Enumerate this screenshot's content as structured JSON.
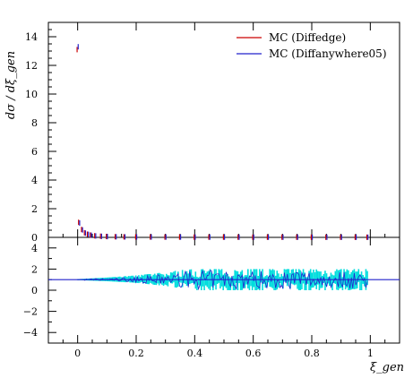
{
  "chart_data": [
    {
      "type": "scatter",
      "panel": "main",
      "ylabel": "dσ / dξ_gen",
      "xlim": [
        -0.1,
        1.1
      ],
      "ylim": [
        0,
        15
      ],
      "yticks": [
        0,
        2,
        4,
        6,
        8,
        10,
        12,
        14
      ],
      "ytick_labels": [
        "0",
        "2",
        "4",
        "6",
        "8",
        "10",
        "12",
        "14"
      ],
      "legend_position": "top-right",
      "series": [
        {
          "name": "MC (Diffedge)",
          "color": "#cc0000",
          "x": [
            0.0,
            0.005,
            0.015,
            0.025,
            0.035,
            0.045,
            0.06,
            0.08,
            0.1,
            0.13,
            0.16,
            0.2,
            0.25,
            0.3,
            0.35,
            0.4,
            0.45,
            0.5,
            0.55,
            0.6,
            0.65,
            0.7,
            0.75,
            0.8,
            0.85,
            0.9,
            0.95,
            0.99
          ],
          "y": [
            13.1,
            1.05,
            0.55,
            0.32,
            0.22,
            0.16,
            0.11,
            0.08,
            0.06,
            0.045,
            0.035,
            0.03,
            0.025,
            0.022,
            0.02,
            0.018,
            0.017,
            0.016,
            0.015,
            0.014,
            0.013,
            0.013,
            0.012,
            0.012,
            0.011,
            0.011,
            0.011,
            0.011
          ]
        },
        {
          "name": "MC (Diffanywhere05)",
          "color": "#2222cc",
          "x": [
            0.0,
            0.005,
            0.015,
            0.025,
            0.035,
            0.045,
            0.06,
            0.08,
            0.1,
            0.13,
            0.16,
            0.2,
            0.25,
            0.3,
            0.35,
            0.4,
            0.45,
            0.5,
            0.55,
            0.6,
            0.65,
            0.7,
            0.75,
            0.8,
            0.85,
            0.9,
            0.95,
            0.99
          ],
          "y": [
            13.3,
            1.0,
            0.52,
            0.3,
            0.21,
            0.15,
            0.1,
            0.075,
            0.055,
            0.042,
            0.033,
            0.028,
            0.024,
            0.021,
            0.019,
            0.017,
            0.016,
            0.015,
            0.014,
            0.013,
            0.012,
            0.012,
            0.011,
            0.011,
            0.011,
            0.01,
            0.01,
            0.01
          ]
        }
      ]
    },
    {
      "type": "line",
      "panel": "ratio",
      "xlabel": "ξ_gen",
      "xlim": [
        -0.1,
        1.1
      ],
      "ylim": [
        -5,
        5
      ],
      "xticks": [
        0,
        0.2,
        0.4,
        0.6,
        0.8,
        1
      ],
      "xtick_labels": [
        "0",
        "0.2",
        "0.4",
        "0.6",
        "0.8",
        "1"
      ],
      "yticks": [
        -4,
        -2,
        0,
        2,
        4
      ],
      "ytick_labels": [
        "−4",
        "−2",
        "0",
        "2",
        "4"
      ],
      "reference_line": 1,
      "band_color": "#00dddd",
      "line_color": "#2222cc",
      "x": [
        0.0,
        0.1,
        0.2,
        0.3,
        0.35,
        0.4,
        0.5,
        0.6,
        0.7,
        0.8,
        0.9,
        0.99
      ],
      "band_low": [
        0.95,
        0.85,
        0.7,
        0.4,
        0.2,
        0.0,
        0.0,
        0.0,
        0.0,
        0.0,
        0.0,
        0.0
      ],
      "band_high": [
        1.05,
        1.2,
        1.4,
        1.7,
        1.9,
        2.0,
        2.0,
        2.0,
        2.0,
        2.0,
        2.0,
        2.0
      ],
      "spread": [
        0.05,
        0.15,
        0.3,
        0.6,
        0.8,
        1.0,
        1.0,
        1.0,
        1.0,
        1.0,
        1.0,
        1.0
      ]
    }
  ],
  "legend": {
    "diffedge_label": "MC (Diffedge)",
    "diffanywhere_label": "MC (Diffanywhere05)"
  },
  "axes": {
    "ylabel": "dσ / dξ_gen",
    "xlabel": "ξ_gen"
  }
}
